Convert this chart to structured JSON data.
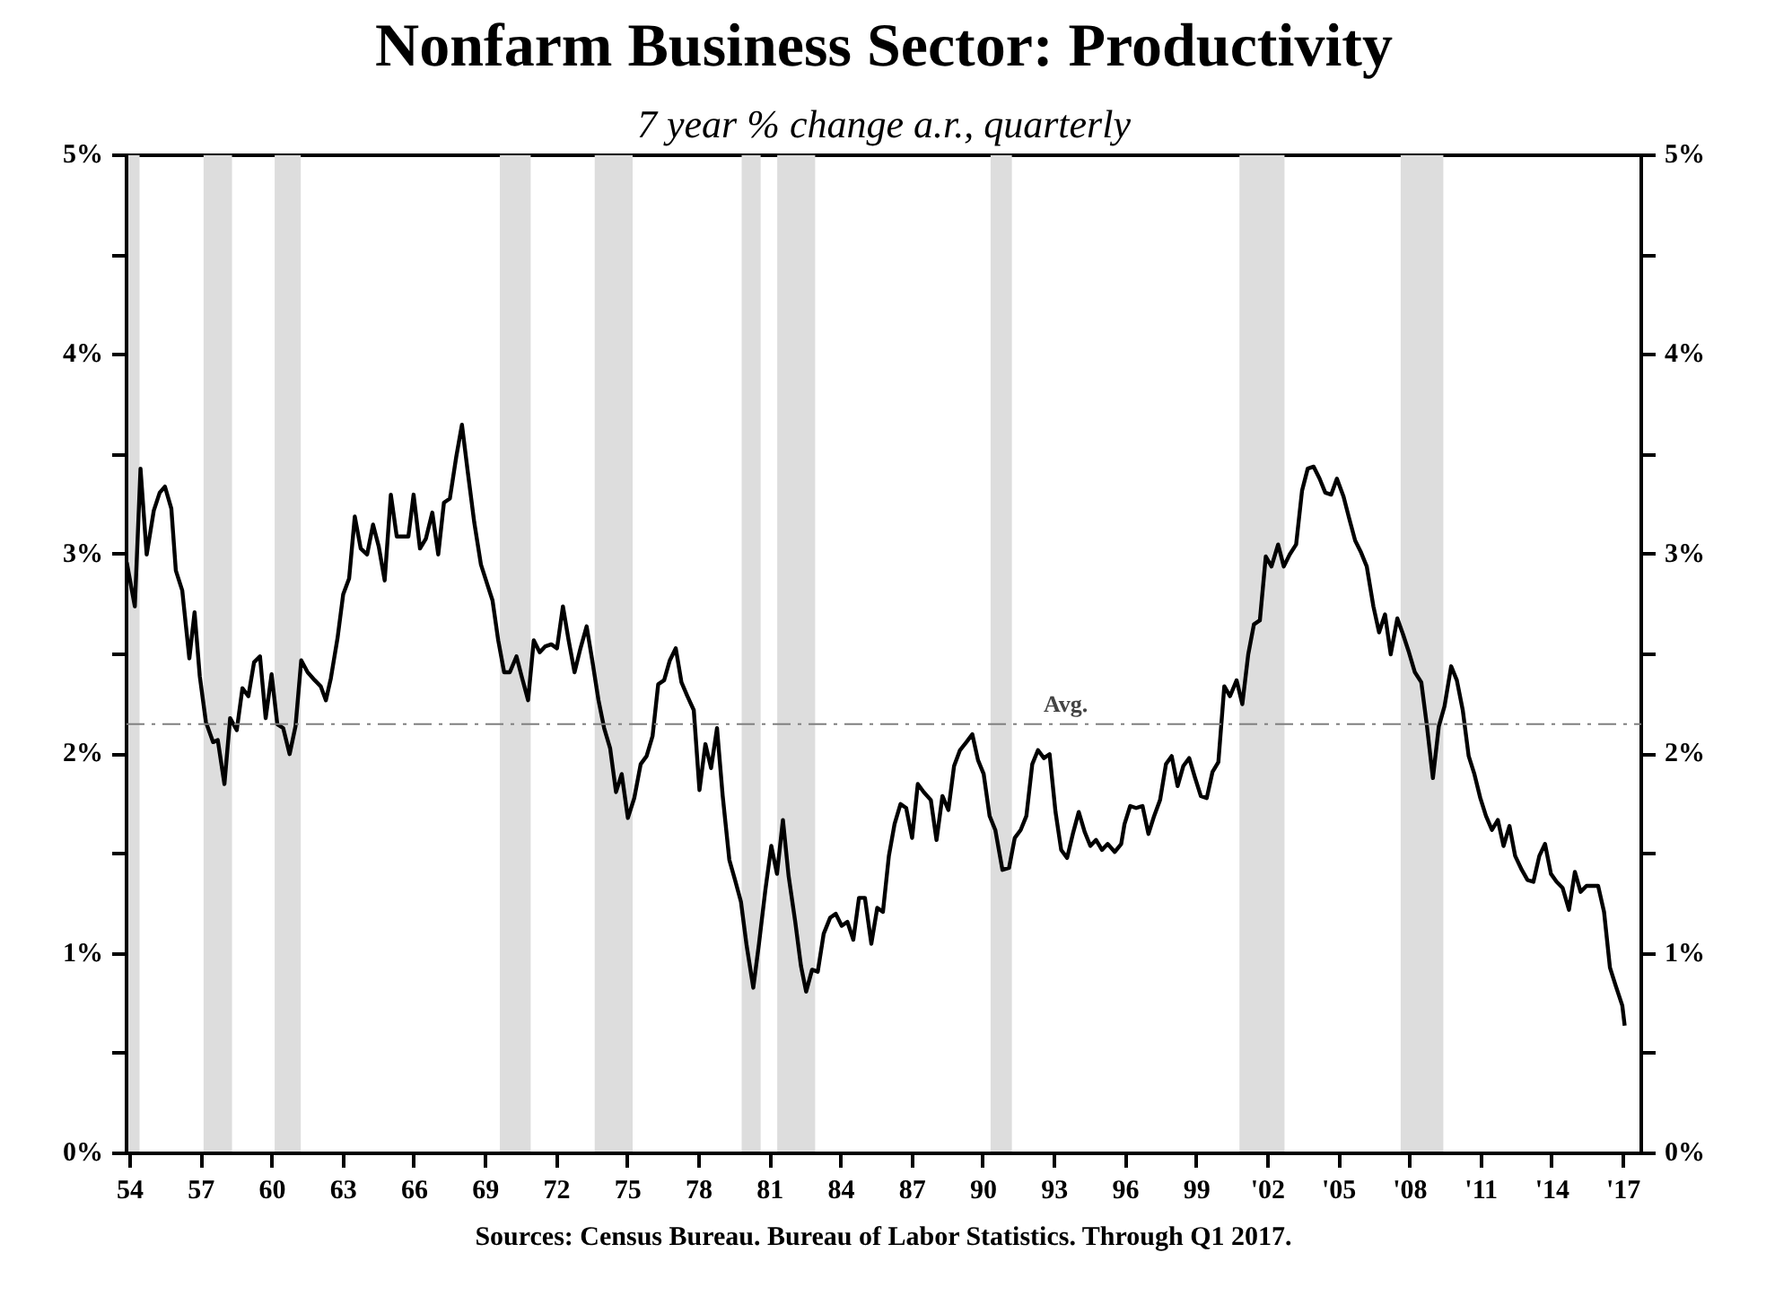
{
  "chart_data": {
    "type": "line",
    "title": "Nonfarm Business Sector: Productivity",
    "subtitle": "7 year % change a.r., quarterly",
    "annotations": [
      "Sources: Census Bureau. Bureau of Labor Statistics. Through Q1 2017."
    ],
    "x": [
      1953.86,
      1954.2,
      1954.44,
      1954.7,
      1955.0,
      1955.25,
      1955.47,
      1955.74,
      1955.93,
      1956.2,
      1956.5,
      1956.72,
      1956.94,
      1957.2,
      1957.5,
      1957.7,
      1957.98,
      1958.22,
      1958.5,
      1958.74,
      1958.99,
      1959.23,
      1959.48,
      1959.72,
      1959.97,
      1960.21,
      1960.46,
      1960.73,
      1960.98,
      1961.22,
      1961.49,
      1961.79,
      1962.04,
      1962.26,
      1962.47,
      1962.75,
      1962.99,
      1963.24,
      1963.48,
      1963.73,
      1964.0,
      1964.25,
      1964.49,
      1964.74,
      1965.0,
      1965.25,
      1965.5,
      1965.74,
      1965.96,
      1966.23,
      1966.48,
      1966.75,
      1967.0,
      1967.24,
      1967.49,
      1967.76,
      1968.0,
      1968.25,
      1968.52,
      1968.8,
      1969.07,
      1969.29,
      1969.53,
      1969.78,
      1970.02,
      1970.3,
      1970.54,
      1970.79,
      1971.03,
      1971.28,
      1971.52,
      1971.77,
      1972.01,
      1972.26,
      1972.5,
      1972.75,
      1973.0,
      1973.26,
      1973.51,
      1973.76,
      1974.0,
      1974.25,
      1974.5,
      1974.74,
      1975.0,
      1975.27,
      1975.54,
      1975.79,
      1976.04,
      1976.28,
      1976.53,
      1976.77,
      1977.02,
      1977.26,
      1977.51,
      1977.78,
      1978.02,
      1978.27,
      1978.51,
      1978.76,
      1979.0,
      1979.28,
      1979.52,
      1979.77,
      1980.01,
      1980.29,
      1980.53,
      1980.8,
      1981.05,
      1981.29,
      1981.54,
      1981.78,
      1982.06,
      1982.3,
      1982.52,
      1982.77,
      1983.01,
      1983.26,
      1983.53,
      1983.77,
      1984.02,
      1984.26,
      1984.51,
      1984.75,
      1985.0,
      1985.27,
      1985.52,
      1985.76,
      1986.01,
      1986.25,
      1986.5,
      1986.74,
      1986.99,
      1987.23,
      1987.48,
      1987.78,
      1988.02,
      1988.27,
      1988.52,
      1988.76,
      1989.01,
      1989.28,
      1989.53,
      1989.77,
      1990.01,
      1990.26,
      1990.5,
      1990.8,
      1991.08,
      1991.32,
      1991.57,
      1991.81,
      1992.06,
      1992.3,
      1992.55,
      1992.79,
      1993.04,
      1993.28,
      1993.53,
      1993.77,
      1994.02,
      1994.27,
      1994.51,
      1994.75,
      1995.0,
      1995.24,
      1995.54,
      1995.81,
      1995.95,
      1996.19,
      1996.44,
      1996.71,
      1996.96,
      1997.2,
      1997.45,
      1997.7,
      1997.94,
      1998.19,
      1998.43,
      1998.68,
      1998.93,
      1999.17,
      1999.42,
      1999.66,
      1999.91,
      2000.16,
      2000.4,
      2000.68,
      2000.92,
      2001.17,
      2001.41,
      2001.66,
      2001.91,
      2002.15,
      2002.43,
      2002.67,
      2002.92,
      2003.19,
      2003.44,
      2003.68,
      2003.93,
      2004.18,
      2004.42,
      2004.67,
      2004.91,
      2005.19,
      2005.43,
      2005.68,
      2005.93,
      2006.17,
      2006.45,
      2006.69,
      2006.94,
      2007.18,
      2007.46,
      2007.7,
      2007.95,
      2008.2,
      2008.47,
      2008.71,
      2008.96,
      2009.21,
      2009.45,
      2009.73,
      2009.97,
      2010.22,
      2010.47,
      2010.71,
      2010.96,
      2011.2,
      2011.45,
      2011.7,
      2011.94,
      2012.19,
      2012.43,
      2012.71,
      2012.95,
      2013.2,
      2013.45,
      2013.69,
      2013.94,
      2014.18,
      2014.43,
      2014.7,
      2014.95,
      2015.19,
      2015.44,
      2015.68,
      2015.93,
      2016.18,
      2016.43,
      2016.67,
      2016.95,
      2017.05
    ],
    "series": [
      {
        "color": "#000000",
        "values": [
          2.96,
          2.74,
          3.43,
          3.0,
          3.22,
          3.31,
          3.34,
          3.23,
          2.92,
          2.82,
          2.48,
          2.71,
          2.39,
          2.16,
          2.06,
          2.07,
          1.85,
          2.18,
          2.12,
          2.33,
          2.29,
          2.46,
          2.49,
          2.18,
          2.4,
          2.15,
          2.13,
          2.0,
          2.14,
          2.47,
          2.41,
          2.37,
          2.34,
          2.27,
          2.38,
          2.58,
          2.8,
          2.88,
          3.19,
          3.03,
          3.0,
          3.15,
          3.04,
          2.87,
          3.3,
          3.09,
          3.09,
          3.09,
          3.3,
          3.03,
          3.08,
          3.21,
          3.0,
          3.26,
          3.28,
          3.49,
          3.65,
          3.41,
          3.16,
          2.95,
          2.85,
          2.77,
          2.57,
          2.41,
          2.41,
          2.49,
          2.38,
          2.27,
          2.57,
          2.51,
          2.54,
          2.55,
          2.53,
          2.74,
          2.57,
          2.41,
          2.53,
          2.64,
          2.46,
          2.27,
          2.13,
          2.03,
          1.81,
          1.9,
          1.68,
          1.78,
          1.95,
          1.99,
          2.09,
          2.35,
          2.37,
          2.47,
          2.53,
          2.36,
          2.29,
          2.22,
          1.82,
          2.05,
          1.93,
          2.13,
          1.79,
          1.47,
          1.37,
          1.26,
          1.04,
          0.83,
          1.05,
          1.32,
          1.54,
          1.4,
          1.67,
          1.39,
          1.16,
          0.94,
          0.81,
          0.92,
          0.91,
          1.1,
          1.18,
          1.2,
          1.14,
          1.16,
          1.07,
          1.28,
          1.28,
          1.05,
          1.23,
          1.21,
          1.49,
          1.65,
          1.75,
          1.73,
          1.58,
          1.85,
          1.81,
          1.77,
          1.57,
          1.79,
          1.72,
          1.94,
          2.02,
          2.06,
          2.1,
          1.97,
          1.9,
          1.69,
          1.62,
          1.42,
          1.43,
          1.58,
          1.62,
          1.69,
          1.95,
          2.02,
          1.98,
          2.0,
          1.71,
          1.52,
          1.48,
          1.6,
          1.71,
          1.61,
          1.54,
          1.57,
          1.52,
          1.55,
          1.51,
          1.55,
          1.65,
          1.74,
          1.73,
          1.74,
          1.6,
          1.69,
          1.77,
          1.95,
          1.99,
          1.84,
          1.94,
          1.98,
          1.88,
          1.79,
          1.78,
          1.91,
          1.96,
          2.34,
          2.29,
          2.37,
          2.25,
          2.5,
          2.65,
          2.67,
          2.99,
          2.94,
          3.05,
          2.94,
          3.0,
          3.05,
          3.32,
          3.43,
          3.44,
          3.38,
          3.31,
          3.3,
          3.38,
          3.29,
          3.18,
          3.07,
          3.01,
          2.94,
          2.74,
          2.61,
          2.7,
          2.5,
          2.68,
          2.6,
          2.51,
          2.41,
          2.36,
          2.14,
          1.88,
          2.14,
          2.24,
          2.44,
          2.37,
          2.22,
          1.99,
          1.9,
          1.78,
          1.69,
          1.62,
          1.67,
          1.54,
          1.64,
          1.49,
          1.42,
          1.37,
          1.36,
          1.49,
          1.55,
          1.4,
          1.36,
          1.33,
          1.22,
          1.41,
          1.31,
          1.34,
          1.34,
          1.34,
          1.21,
          0.93,
          0.84,
          0.74,
          0.64
        ]
      }
    ],
    "xlim": [
      1953.85,
      2017.75
    ],
    "xticks": [
      {
        "value": 1954,
        "label": "54"
      },
      {
        "value": 1957,
        "label": "57"
      },
      {
        "value": 1960,
        "label": "60"
      },
      {
        "value": 1963,
        "label": "63"
      },
      {
        "value": 1966,
        "label": "66"
      },
      {
        "value": 1969,
        "label": "69"
      },
      {
        "value": 1972,
        "label": "72"
      },
      {
        "value": 1975,
        "label": "75"
      },
      {
        "value": 1978,
        "label": "78"
      },
      {
        "value": 1981,
        "label": "81"
      },
      {
        "value": 1984,
        "label": "84"
      },
      {
        "value": 1987,
        "label": "87"
      },
      {
        "value": 1990,
        "label": "90"
      },
      {
        "value": 1993,
        "label": "93"
      },
      {
        "value": 1996,
        "label": "96"
      },
      {
        "value": 1999,
        "label": "99"
      },
      {
        "value": 2002,
        "label": "'02"
      },
      {
        "value": 2005,
        "label": "'05"
      },
      {
        "value": 2008,
        "label": "'08"
      },
      {
        "value": 2011,
        "label": "'11"
      },
      {
        "value": 2014,
        "label": "'14"
      },
      {
        "value": 2017,
        "label": "'17"
      }
    ],
    "ylim": [
      0,
      5
    ],
    "yticks": [
      {
        "value": 0,
        "label": "0%"
      },
      {
        "value": 0.5,
        "label": null
      },
      {
        "value": 1,
        "label": "1%"
      },
      {
        "value": 1.5,
        "label": null
      },
      {
        "value": 2,
        "label": "2%"
      },
      {
        "value": 2.5,
        "label": null
      },
      {
        "value": 3,
        "label": "3%"
      },
      {
        "value": 3.5,
        "label": null
      },
      {
        "value": 4,
        "label": "4%"
      },
      {
        "value": 4.5,
        "label": null
      },
      {
        "value": 5,
        "label": "5%"
      }
    ],
    "y2lim": [
      0,
      5
    ],
    "y2ticks": [
      {
        "value": 0,
        "label": "0%"
      },
      {
        "value": 0.5,
        "label": null
      },
      {
        "value": 1,
        "label": "1%"
      },
      {
        "value": 1.5,
        "label": null
      },
      {
        "value": 2,
        "label": "2%"
      },
      {
        "value": 2.5,
        "label": null
      },
      {
        "value": 3,
        "label": "3%"
      },
      {
        "value": 3.5,
        "label": null
      },
      {
        "value": 4,
        "label": "4%"
      },
      {
        "value": 4.5,
        "label": null
      },
      {
        "value": 5,
        "label": "5%"
      }
    ],
    "ref_lines": [
      {
        "axis": "y",
        "value": 2.15,
        "label": "Avg.",
        "color": "#808080",
        "line_style": "dashed"
      }
    ],
    "bands": [
      {
        "axis": "x",
        "from": 1953.85,
        "to": 1954.4,
        "color": "#dddddd"
      },
      {
        "axis": "x",
        "from": 1957.1,
        "to": 1958.3,
        "color": "#dddddd"
      },
      {
        "axis": "x",
        "from": 1960.1,
        "to": 1961.2,
        "color": "#dddddd"
      },
      {
        "axis": "x",
        "from": 1969.6,
        "to": 1970.9,
        "color": "#dddddd"
      },
      {
        "axis": "x",
        "from": 1973.6,
        "to": 1975.2,
        "color": "#dddddd"
      },
      {
        "axis": "x",
        "from": 1979.8,
        "to": 1980.6,
        "color": "#dddddd"
      },
      {
        "axis": "x",
        "from": 1981.3,
        "to": 1982.9,
        "color": "#dddddd"
      },
      {
        "axis": "x",
        "from": 1990.3,
        "to": 1991.2,
        "color": "#dddddd"
      },
      {
        "axis": "x",
        "from": 2000.8,
        "to": 2002.7,
        "color": "#dddddd"
      },
      {
        "axis": "x",
        "from": 2007.6,
        "to": 2009.4,
        "color": "#dddddd"
      }
    ],
    "grid": false,
    "marker": "none",
    "line_style": "solid"
  }
}
